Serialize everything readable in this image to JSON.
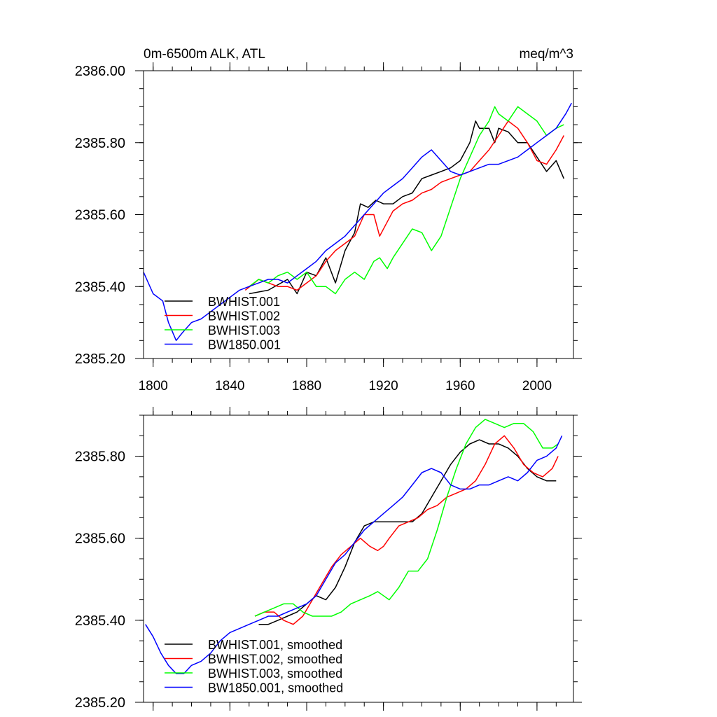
{
  "chart_data": [
    {
      "type": "line",
      "title_left": "0m-6500m ALK, ATL",
      "title_right": "meq/m^3",
      "xlabel": "",
      "ylabel": "",
      "xlim": [
        1795,
        2019
      ],
      "ylim": [
        2385.2,
        2386.0
      ],
      "xticks": [
        1800,
        1840,
        1880,
        1920,
        1960,
        2000
      ],
      "yticks": [
        2385.2,
        2385.4,
        2385.6,
        2385.8,
        2386.0
      ],
      "ytick_labels": [
        "2385.20",
        "2385.40",
        "2385.60",
        "2385.80",
        "2386.00"
      ],
      "legend_position": "bottom-left",
      "series": [
        {
          "name": "BWHIST.001",
          "color": "#000000",
          "x": [
            1850,
            1860,
            1870,
            1875,
            1880,
            1885,
            1890,
            1895,
            1900,
            1905,
            1908,
            1912,
            1916,
            1920,
            1925,
            1930,
            1935,
            1940,
            1945,
            1950,
            1955,
            1960,
            1965,
            1968,
            1970,
            1975,
            1978,
            1980,
            1985,
            1990,
            1995,
            2000,
            2005,
            2010,
            2014
          ],
          "y": [
            2385.38,
            2385.39,
            2385.42,
            2385.38,
            2385.44,
            2385.43,
            2385.48,
            2385.41,
            2385.5,
            2385.55,
            2385.63,
            2385.62,
            2385.64,
            2385.63,
            2385.63,
            2385.65,
            2385.66,
            2385.7,
            2385.71,
            2385.72,
            2385.73,
            2385.75,
            2385.8,
            2385.86,
            2385.84,
            2385.84,
            2385.8,
            2385.84,
            2385.83,
            2385.8,
            2385.8,
            2385.76,
            2385.72,
            2385.75,
            2385.7
          ]
        },
        {
          "name": "BWHIST.002",
          "color": "#ff0000",
          "x": [
            1848,
            1855,
            1860,
            1865,
            1870,
            1875,
            1880,
            1885,
            1890,
            1895,
            1900,
            1905,
            1910,
            1915,
            1918,
            1922,
            1925,
            1930,
            1935,
            1940,
            1945,
            1950,
            1955,
            1960,
            1965,
            1970,
            1975,
            1980,
            1985,
            1990,
            1995,
            2000,
            2005,
            2010,
            2014
          ],
          "y": [
            2385.39,
            2385.42,
            2385.41,
            2385.4,
            2385.4,
            2385.39,
            2385.41,
            2385.43,
            2385.47,
            2385.5,
            2385.52,
            2385.54,
            2385.6,
            2385.6,
            2385.54,
            2385.58,
            2385.61,
            2385.63,
            2385.64,
            2385.66,
            2385.67,
            2385.69,
            2385.7,
            2385.71,
            2385.72,
            2385.75,
            2385.78,
            2385.82,
            2385.86,
            2385.84,
            2385.8,
            2385.75,
            2385.74,
            2385.78,
            2385.82
          ]
        },
        {
          "name": "BWHIST.003",
          "color": "#00ff00",
          "x": [
            1850,
            1855,
            1860,
            1865,
            1870,
            1875,
            1880,
            1885,
            1890,
            1895,
            1900,
            1905,
            1910,
            1915,
            1918,
            1922,
            1925,
            1930,
            1935,
            1940,
            1945,
            1950,
            1955,
            1960,
            1965,
            1970,
            1975,
            1978,
            1980,
            1985,
            1990,
            1995,
            2000,
            2005,
            2010,
            2014
          ],
          "y": [
            2385.4,
            2385.42,
            2385.41,
            2385.43,
            2385.44,
            2385.42,
            2385.44,
            2385.4,
            2385.4,
            2385.38,
            2385.42,
            2385.44,
            2385.42,
            2385.47,
            2385.48,
            2385.45,
            2385.48,
            2385.52,
            2385.56,
            2385.55,
            2385.5,
            2385.54,
            2385.62,
            2385.7,
            2385.76,
            2385.82,
            2385.86,
            2385.9,
            2385.88,
            2385.86,
            2385.9,
            2385.88,
            2385.86,
            2385.82,
            2385.84,
            2385.85
          ]
        },
        {
          "name": "BW1850.001",
          "color": "#0000ff",
          "x": [
            1795,
            1800,
            1805,
            1808,
            1812,
            1815,
            1820,
            1825,
            1830,
            1835,
            1840,
            1845,
            1850,
            1855,
            1860,
            1865,
            1870,
            1875,
            1880,
            1885,
            1890,
            1895,
            1900,
            1905,
            1910,
            1915,
            1920,
            1925,
            1930,
            1935,
            1940,
            1945,
            1950,
            1955,
            1960,
            1965,
            1970,
            1975,
            1980,
            1985,
            1990,
            1995,
            2000,
            2005,
            2010,
            2015,
            2018
          ],
          "y": [
            2385.44,
            2385.38,
            2385.36,
            2385.3,
            2385.25,
            2385.27,
            2385.3,
            2385.31,
            2385.33,
            2385.35,
            2385.37,
            2385.39,
            2385.4,
            2385.41,
            2385.42,
            2385.42,
            2385.41,
            2385.43,
            2385.45,
            2385.47,
            2385.5,
            2385.52,
            2385.54,
            2385.57,
            2385.6,
            2385.63,
            2385.66,
            2385.68,
            2385.7,
            2385.73,
            2385.76,
            2385.78,
            2385.75,
            2385.72,
            2385.71,
            2385.72,
            2385.73,
            2385.74,
            2385.74,
            2385.75,
            2385.76,
            2385.78,
            2385.8,
            2385.82,
            2385.84,
            2385.88,
            2385.91
          ]
        }
      ]
    },
    {
      "type": "line",
      "xlabel": "",
      "ylabel": "",
      "xlim": [
        1795,
        2019
      ],
      "ylim": [
        2385.2,
        2385.9
      ],
      "xticks": [
        1800,
        1840,
        1880,
        1920,
        1960,
        2000
      ],
      "yticks": [
        2385.2,
        2385.4,
        2385.6,
        2385.8
      ],
      "ytick_labels": [
        "2385.20",
        "2385.40",
        "2385.60",
        "2385.80"
      ],
      "legend_position": "bottom-left",
      "series": [
        {
          "name": "BWHIST.001, smoothed",
          "color": "#000000",
          "x": [
            1855,
            1860,
            1865,
            1870,
            1875,
            1880,
            1885,
            1890,
            1895,
            1900,
            1905,
            1910,
            1915,
            1920,
            1925,
            1930,
            1935,
            1940,
            1945,
            1950,
            1955,
            1960,
            1965,
            1970,
            1975,
            1980,
            1985,
            1990,
            1995,
            2000,
            2005,
            2010
          ],
          "y": [
            2385.39,
            2385.39,
            2385.4,
            2385.41,
            2385.42,
            2385.44,
            2385.46,
            2385.45,
            2385.48,
            2385.53,
            2385.59,
            2385.63,
            2385.64,
            2385.64,
            2385.64,
            2385.64,
            2385.64,
            2385.66,
            2385.7,
            2385.74,
            2385.78,
            2385.81,
            2385.83,
            2385.84,
            2385.83,
            2385.83,
            2385.82,
            2385.8,
            2385.77,
            2385.75,
            2385.74,
            2385.74
          ]
        },
        {
          "name": "BWHIST.002, smoothed",
          "color": "#ff0000",
          "x": [
            1853,
            1858,
            1863,
            1868,
            1873,
            1878,
            1883,
            1888,
            1893,
            1898,
            1903,
            1908,
            1913,
            1917,
            1920,
            1923,
            1928,
            1933,
            1938,
            1943,
            1948,
            1953,
            1958,
            1963,
            1968,
            1973,
            1978,
            1983,
            1988,
            1993,
            1998,
            2003,
            2008,
            2011
          ],
          "y": [
            2385.41,
            2385.42,
            2385.42,
            2385.4,
            2385.39,
            2385.41,
            2385.45,
            2385.49,
            2385.53,
            2385.56,
            2385.58,
            2385.6,
            2385.58,
            2385.57,
            2385.58,
            2385.6,
            2385.63,
            2385.64,
            2385.65,
            2385.67,
            2385.68,
            2385.7,
            2385.71,
            2385.72,
            2385.74,
            2385.78,
            2385.83,
            2385.85,
            2385.82,
            2385.78,
            2385.76,
            2385.75,
            2385.77,
            2385.8
          ]
        },
        {
          "name": "BWHIST.003, smoothed",
          "color": "#00ff00",
          "x": [
            1853,
            1858,
            1863,
            1868,
            1873,
            1878,
            1883,
            1888,
            1893,
            1898,
            1903,
            1908,
            1913,
            1917,
            1920,
            1923,
            1928,
            1933,
            1938,
            1943,
            1948,
            1953,
            1958,
            1963,
            1968,
            1973,
            1978,
            1983,
            1988,
            1993,
            1998,
            2003,
            2008,
            2011
          ],
          "y": [
            2385.41,
            2385.42,
            2385.43,
            2385.44,
            2385.44,
            2385.42,
            2385.41,
            2385.41,
            2385.41,
            2385.42,
            2385.44,
            2385.45,
            2385.46,
            2385.47,
            2385.46,
            2385.45,
            2385.48,
            2385.52,
            2385.52,
            2385.55,
            2385.62,
            2385.7,
            2385.77,
            2385.83,
            2385.87,
            2385.89,
            2385.88,
            2385.87,
            2385.88,
            2385.88,
            2385.86,
            2385.82,
            2385.82,
            2385.83
          ]
        },
        {
          "name": "BW1850.001, smoothed",
          "color": "#0000ff",
          "x": [
            1796,
            1800,
            1804,
            1808,
            1812,
            1816,
            1820,
            1825,
            1830,
            1835,
            1840,
            1845,
            1850,
            1855,
            1860,
            1865,
            1870,
            1875,
            1880,
            1885,
            1890,
            1895,
            1900,
            1905,
            1910,
            1915,
            1920,
            1925,
            1930,
            1935,
            1940,
            1945,
            1950,
            1955,
            1960,
            1965,
            1970,
            1975,
            1980,
            1985,
            1990,
            1995,
            2000,
            2005,
            2010,
            2013
          ],
          "y": [
            2385.39,
            2385.36,
            2385.32,
            2385.29,
            2385.27,
            2385.27,
            2385.29,
            2385.3,
            2385.32,
            2385.35,
            2385.37,
            2385.38,
            2385.39,
            2385.4,
            2385.41,
            2385.41,
            2385.42,
            2385.43,
            2385.44,
            2385.46,
            2385.5,
            2385.54,
            2385.56,
            2385.59,
            2385.62,
            2385.64,
            2385.66,
            2385.68,
            2385.7,
            2385.73,
            2385.76,
            2385.77,
            2385.76,
            2385.73,
            2385.72,
            2385.72,
            2385.73,
            2385.73,
            2385.74,
            2385.75,
            2385.74,
            2385.76,
            2385.79,
            2385.8,
            2385.82,
            2385.85
          ]
        }
      ]
    }
  ]
}
